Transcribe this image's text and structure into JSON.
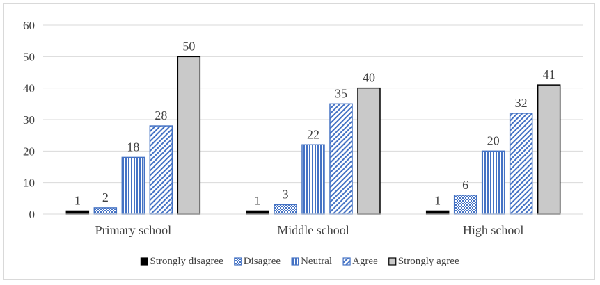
{
  "chart_data": {
    "type": "bar",
    "title": "",
    "xlabel": "",
    "ylabel": "",
    "ylim": [
      0,
      60
    ],
    "yticks": [
      0,
      10,
      20,
      30,
      40,
      50,
      60
    ],
    "grid": true,
    "legend_position": "bottom",
    "categories": [
      "Primary school",
      "Middle school",
      "High school"
    ],
    "series": [
      {
        "name": "Strongly disagree",
        "values": [
          1,
          1,
          1
        ],
        "color": "#000000",
        "pattern": "solid"
      },
      {
        "name": "Disagree",
        "values": [
          2,
          3,
          6
        ],
        "color": "#4472c4",
        "pattern": "checker"
      },
      {
        "name": "Neutral",
        "values": [
          18,
          22,
          20
        ],
        "color": "#4472c4",
        "pattern": "vertical-stripes"
      },
      {
        "name": "Agree",
        "values": [
          28,
          35,
          32
        ],
        "color": "#4472c4",
        "pattern": "diagonal-stripes"
      },
      {
        "name": "Strongly agree",
        "values": [
          50,
          40,
          41
        ],
        "color": "#c9c9c9",
        "pattern": "solid-outlined"
      }
    ]
  }
}
